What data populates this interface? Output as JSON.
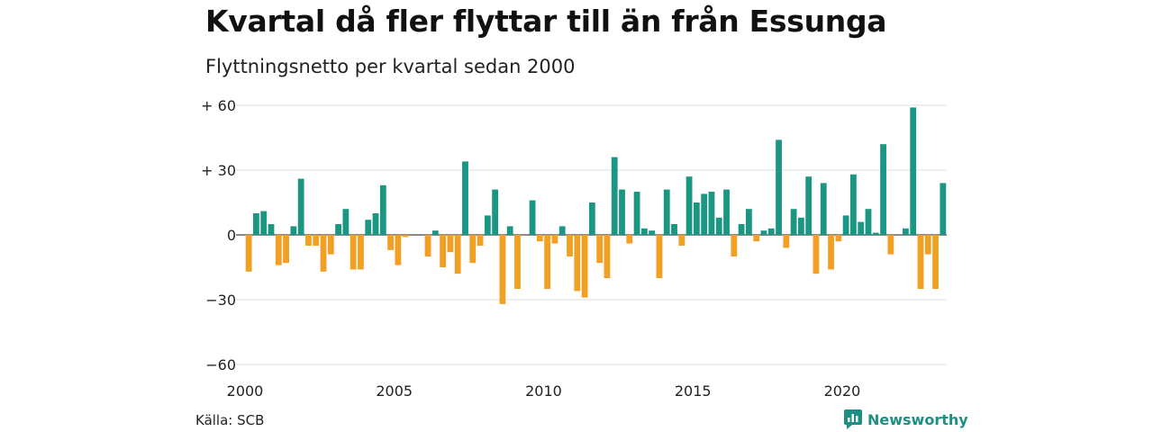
{
  "header": {
    "title": "Kvartal då fler flyttar till än från Essunga",
    "subtitle": "Flyttningsnetto per kvartal sedan 2000"
  },
  "footer": {
    "source": "Källa: SCB",
    "brand": "Newsworthy"
  },
  "colors": {
    "positive": "#1a9682",
    "negative": "#f2a024",
    "brand": "#1e8f83"
  },
  "chart_data": {
    "type": "bar",
    "x_start": "2000-Q1",
    "x_ticks": [
      "2000",
      "2005",
      "2010",
      "2015",
      "2020"
    ],
    "y_ticks": [
      "+ 60",
      "+ 30",
      "0",
      "−30",
      "−60"
    ],
    "ylim": [
      -60,
      60
    ],
    "grid": true,
    "values": [
      -17,
      10,
      11,
      5,
      -14,
      -13,
      4,
      26,
      -5,
      -5,
      -17,
      -9,
      5,
      12,
      -16,
      -16,
      7,
      10,
      23,
      -7,
      -14,
      -1,
      0,
      0,
      -10,
      2,
      -15,
      -8,
      -18,
      34,
      -13,
      -5,
      9,
      21,
      -32,
      4,
      -25,
      0,
      16,
      -3,
      -25,
      -4,
      4,
      -10,
      -26,
      -29,
      15,
      -13,
      -20,
      36,
      21,
      -4,
      20,
      3,
      2,
      -20,
      21,
      5,
      -5,
      27,
      15,
      19,
      20,
      8,
      21,
      -10,
      5,
      12,
      -3,
      2,
      3,
      44,
      -6,
      12,
      8,
      27,
      -18,
      24,
      -16,
      -3,
      9,
      28,
      6,
      12,
      1,
      42,
      -9,
      0,
      3,
      59,
      -25,
      -9,
      -25,
      24
    ]
  }
}
